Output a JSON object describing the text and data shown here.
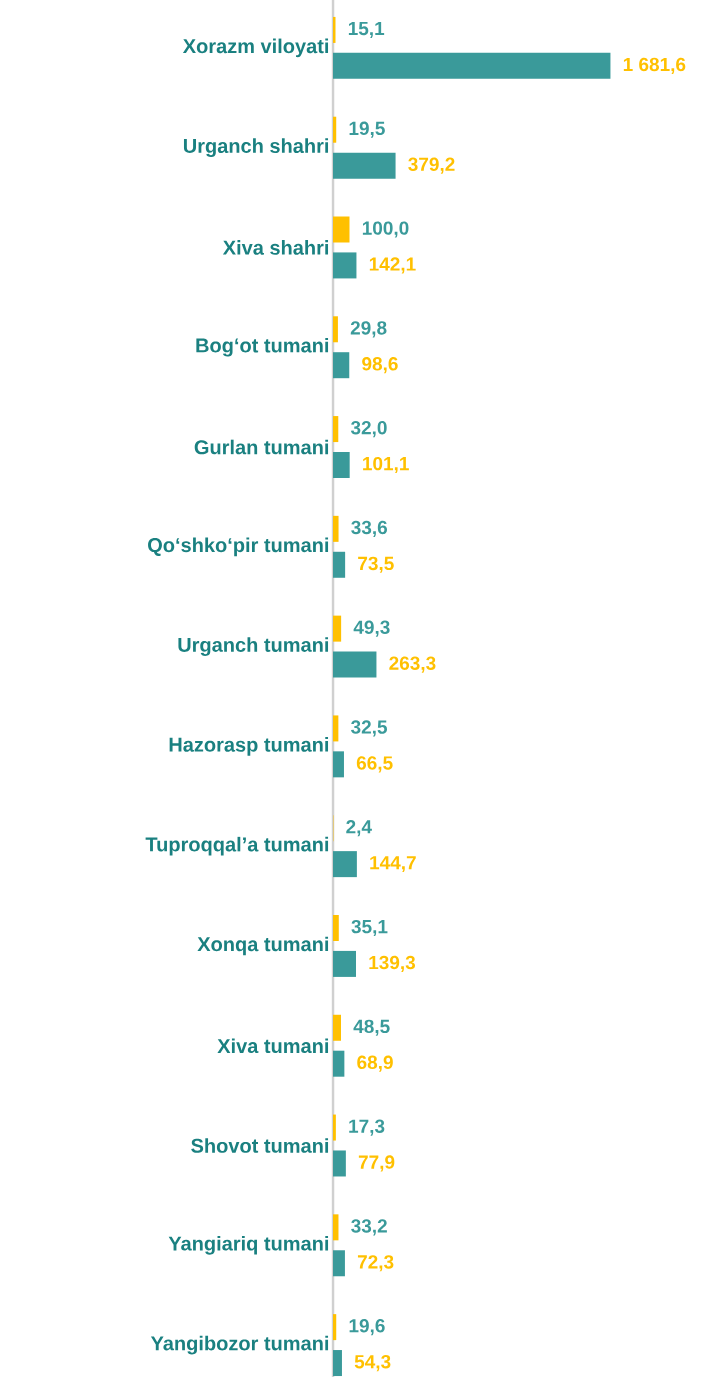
{
  "chart_data": {
    "type": "bar",
    "orientation": "horizontal",
    "categories": [
      "Xorazm viloyati",
      "Urganch shahri",
      "Xiva shahri",
      "Bog‘ot tumani",
      "Gurlan tumani",
      "Qo‘shko‘pir tumani",
      "Urganch tumani",
      "Hazorasp tumani",
      "Tuproqqal’a tumani",
      "Xonqa tumani",
      "Xiva tumani",
      "Shovot tumani",
      "Yangiariq tumani",
      "Yangibozor tumani"
    ],
    "series": [
      {
        "color": "#ffc000",
        "values": [
          15.1,
          19.5,
          100.0,
          29.8,
          32.0,
          33.6,
          49.3,
          32.5,
          2.4,
          35.1,
          48.5,
          17.3,
          33.2,
          19.6
        ],
        "value_labels": [
          "15,1",
          "19,5",
          "100,0",
          "29,8",
          "32,0",
          "33,6",
          "49,3",
          "32,5",
          "2,4",
          "35,1",
          "48,5",
          "17,3",
          "33,2",
          "19,6"
        ]
      },
      {
        "color": "#3a9a9a",
        "values": [
          1681.6,
          379.2,
          142.1,
          98.6,
          101.1,
          73.5,
          263.3,
          66.5,
          144.7,
          139.3,
          68.9,
          77.9,
          72.3,
          54.3
        ],
        "value_labels": [
          "1 681,6",
          "379,2",
          "142,1",
          "98,6",
          "101,1",
          "73,5",
          "263,3",
          "66,5",
          "144,7",
          "139,3",
          "68,9",
          "77,9",
          "72,3",
          "54,3"
        ]
      }
    ],
    "tick_labels": "y"
  }
}
